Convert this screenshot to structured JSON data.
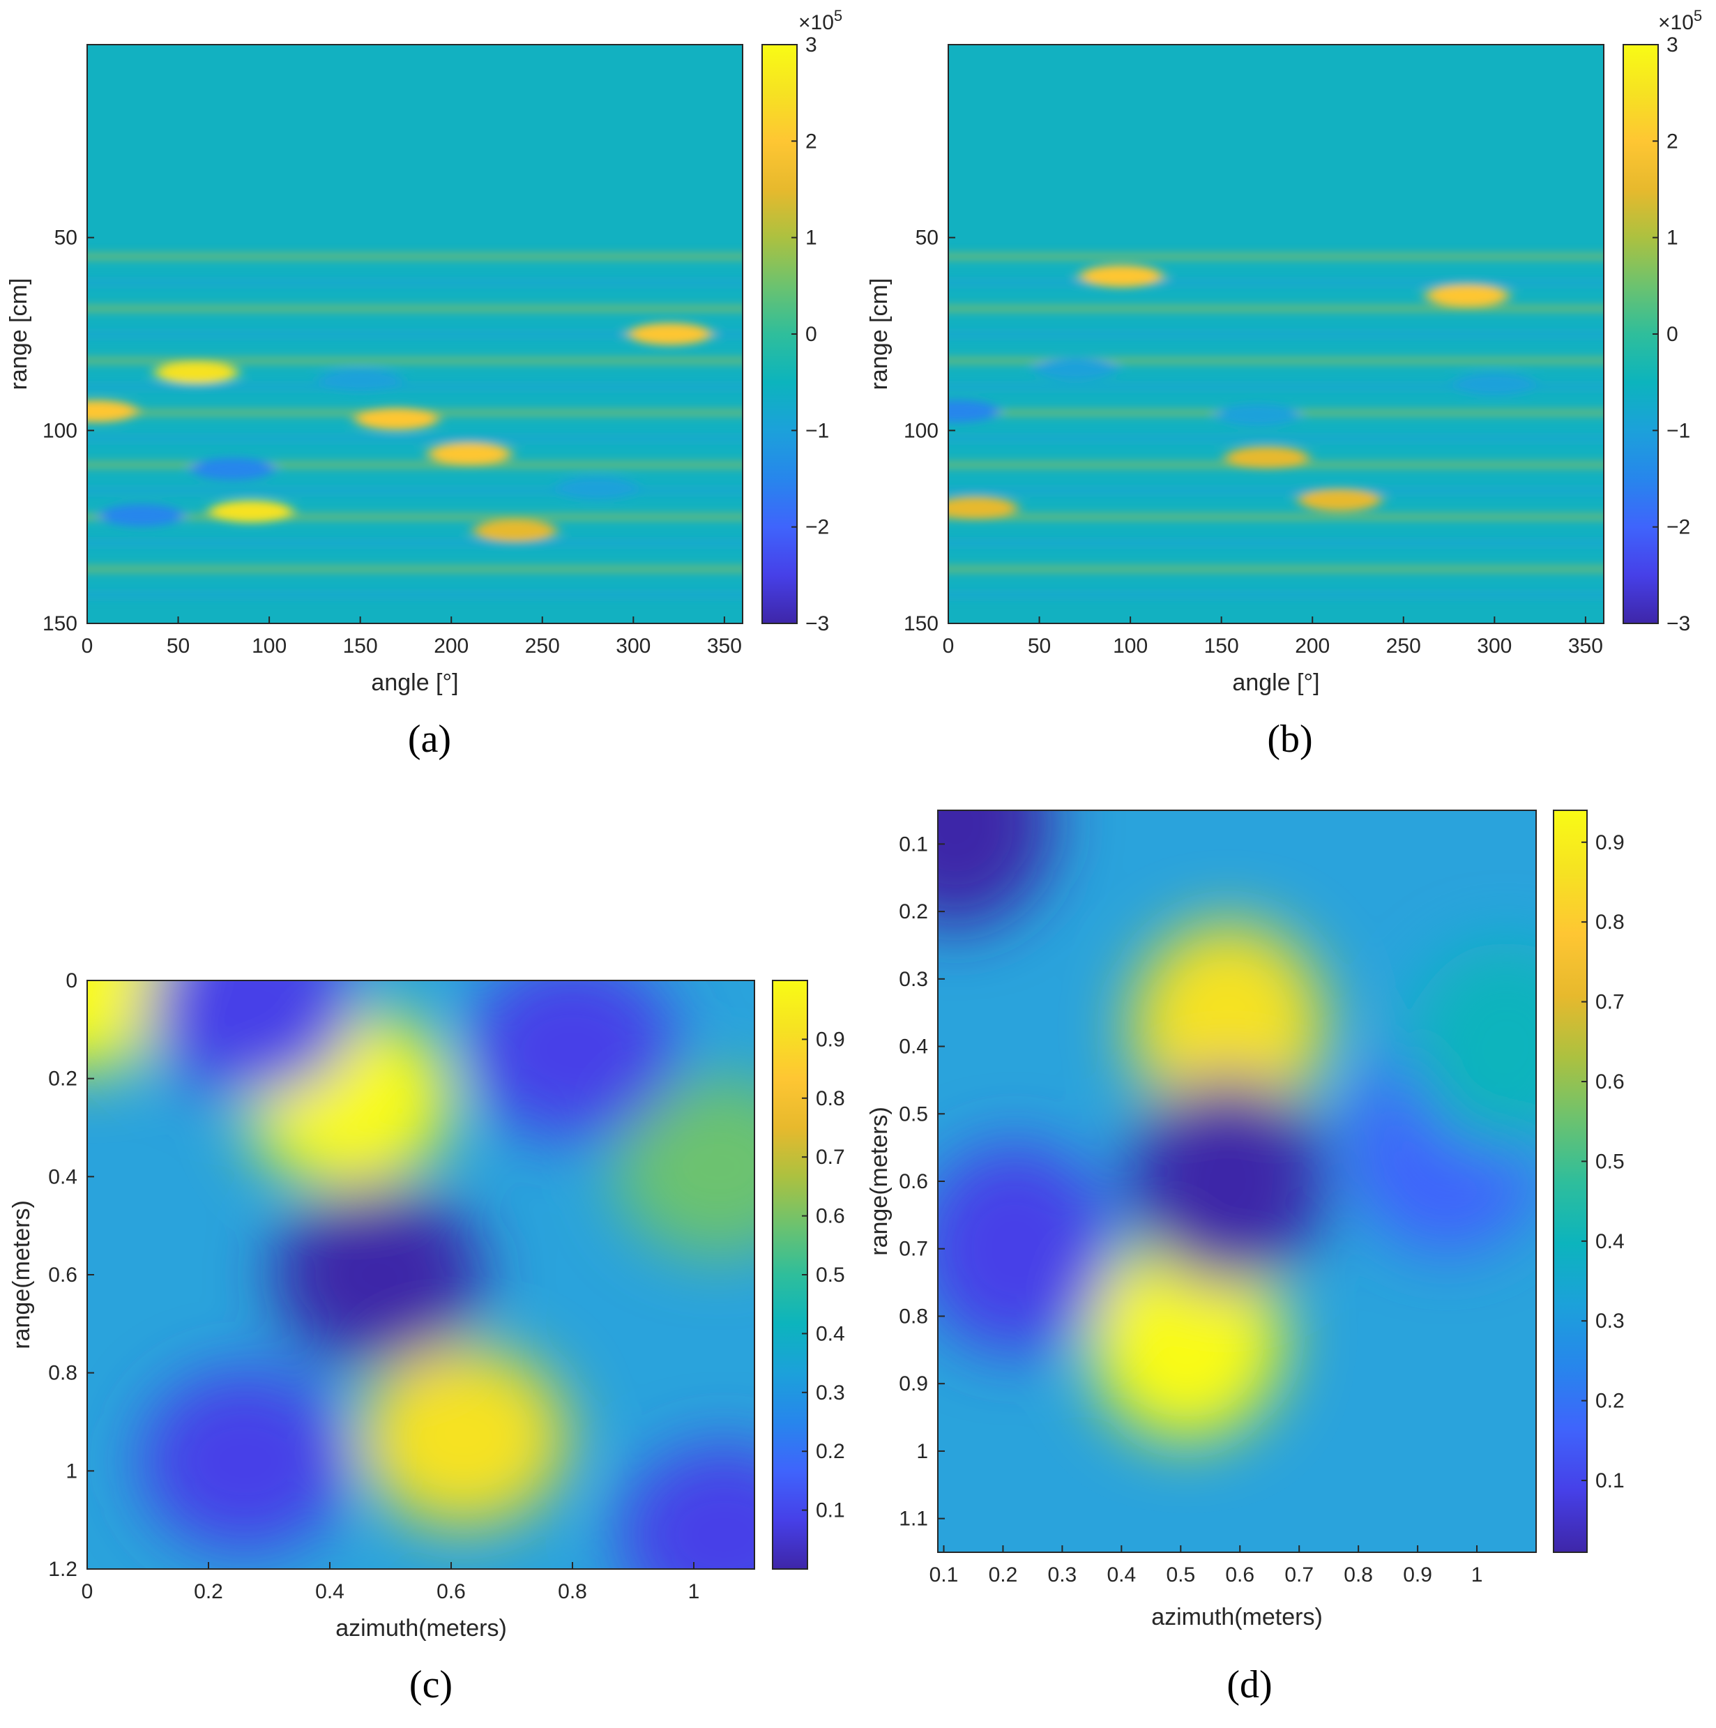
{
  "colormap": [
    "#3e26a8",
    "#4640e8",
    "#3f64fc",
    "#2786ec",
    "#1ca1da",
    "#0cb4bd",
    "#2fbe9b",
    "#6cc26f",
    "#acc140",
    "#e7b92d",
    "#fec633",
    "#f6e222",
    "#f9fb15"
  ],
  "chart_data": [
    {
      "type": "heatmap",
      "panel": "(a)",
      "xlabel": "angle [°]",
      "ylabel": "range [cm]",
      "xlim": [
        0,
        360
      ],
      "ylim": [
        0,
        150
      ],
      "y_reversed": true,
      "x_ticks": [
        "0",
        "50",
        "100",
        "150",
        "200",
        "250",
        "300",
        "350"
      ],
      "y_ticks": [
        "50",
        "100",
        "150"
      ],
      "colorbar": {
        "ticks": [
          "-3",
          "-2",
          "-1",
          "0",
          "1",
          "2",
          "3"
        ],
        "range": [
          -3,
          3
        ],
        "multiplier_base": "×10",
        "multiplier_exp": "5"
      },
      "features": [
        {
          "x": 60,
          "y": 85,
          "value": 2.4
        },
        {
          "x": 5,
          "y": 95,
          "value": 2.2
        },
        {
          "x": 90,
          "y": 121,
          "value": 2.3
        },
        {
          "x": 170,
          "y": 97,
          "value": 2.2
        },
        {
          "x": 320,
          "y": 75,
          "value": 2.0
        },
        {
          "x": 210,
          "y": 106,
          "value": 1.8
        },
        {
          "x": 235,
          "y": 126,
          "value": 1.5
        },
        {
          "x": 80,
          "y": 110,
          "value": -1.3
        },
        {
          "x": 280,
          "y": 115,
          "value": -1.2
        },
        {
          "x": 30,
          "y": 122,
          "value": -1.3
        },
        {
          "x": 150,
          "y": 87,
          "value": -1.2
        }
      ]
    },
    {
      "type": "heatmap",
      "panel": "(b)",
      "xlabel": "angle [°]",
      "ylabel": "range [cm]",
      "xlim": [
        0,
        360
      ],
      "ylim": [
        0,
        150
      ],
      "y_reversed": true,
      "x_ticks": [
        "0",
        "50",
        "100",
        "150",
        "200",
        "250",
        "300",
        "350"
      ],
      "y_ticks": [
        "50",
        "100",
        "150"
      ],
      "colorbar": {
        "ticks": [
          "-3",
          "-2",
          "-1",
          "0",
          "1",
          "2",
          "3"
        ],
        "range": [
          -3,
          3
        ],
        "multiplier_base": "×10",
        "multiplier_exp": "5"
      },
      "features": [
        {
          "x": 95,
          "y": 60,
          "value": 2.2
        },
        {
          "x": 285,
          "y": 65,
          "value": 1.8
        },
        {
          "x": 15,
          "y": 120,
          "value": 1.7
        },
        {
          "x": 215,
          "y": 118,
          "value": 1.6
        },
        {
          "x": 175,
          "y": 107,
          "value": 1.3
        },
        {
          "x": 5,
          "y": 95,
          "value": -1.5
        },
        {
          "x": 170,
          "y": 96,
          "value": -1.2
        },
        {
          "x": 300,
          "y": 88,
          "value": -1.2
        },
        {
          "x": 70,
          "y": 84,
          "value": -1.0
        }
      ]
    },
    {
      "type": "heatmap",
      "panel": "(c)",
      "xlabel": "azimuth(meters)",
      "ylabel": "range(meters)",
      "xlim": [
        0,
        1.1
      ],
      "ylim": [
        0,
        1.2
      ],
      "y_reversed": true,
      "x_ticks": [
        "0",
        "0.2",
        "0.4",
        "0.6",
        "0.8",
        "1"
      ],
      "y_ticks": [
        "0",
        "0.2",
        "0.4",
        "0.6",
        "0.8",
        "1",
        "1.2"
      ],
      "colorbar": {
        "ticks": [
          "0.1",
          "0.2",
          "0.3",
          "0.4",
          "0.5",
          "0.6",
          "0.7",
          "0.8",
          "0.9"
        ],
        "range": [
          0,
          1
        ]
      },
      "features": [
        {
          "x": 0.43,
          "y": 0.24,
          "value": 0.98
        },
        {
          "x": 0.62,
          "y": 0.93,
          "value": 0.95
        },
        {
          "x": 0.0,
          "y": 0.0,
          "value": 1.0
        },
        {
          "x": 1.04,
          "y": 0.38,
          "value": 0.58
        },
        {
          "x": 0.8,
          "y": 0.14,
          "value": 0.05
        },
        {
          "x": 0.26,
          "y": 0.98,
          "value": 0.05
        },
        {
          "x": 0.48,
          "y": 0.6,
          "value": 0.03
        },
        {
          "x": 1.05,
          "y": 1.13,
          "value": 0.05
        },
        {
          "x": 0.27,
          "y": 0.05,
          "value": 0.1
        }
      ]
    },
    {
      "type": "heatmap",
      "panel": "(d)",
      "xlabel": "azimuth(meters)",
      "ylabel": "range(meters)",
      "xlim": [
        0.09,
        1.1
      ],
      "ylim": [
        0.05,
        1.15
      ],
      "y_reversed": true,
      "x_ticks": [
        "0.1",
        "0.2",
        "0.3",
        "0.4",
        "0.5",
        "0.6",
        "0.7",
        "0.8",
        "0.9",
        "1"
      ],
      "y_ticks": [
        "0.1",
        "0.2",
        "0.3",
        "0.4",
        "0.5",
        "0.6",
        "0.7",
        "0.8",
        "0.9",
        "1",
        "1.1"
      ],
      "colorbar": {
        "ticks": [
          "0.1",
          "0.2",
          "0.3",
          "0.4",
          "0.5",
          "0.6",
          "0.7",
          "0.8",
          "0.9"
        ],
        "range": [
          0.01,
          0.94
        ]
      },
      "features": [
        {
          "x": 0.58,
          "y": 0.37,
          "value": 0.9
        },
        {
          "x": 0.51,
          "y": 0.83,
          "value": 0.94
        },
        {
          "x": 0.58,
          "y": 0.6,
          "value": 0.02
        },
        {
          "x": 0.12,
          "y": 0.07,
          "value": 0.02
        },
        {
          "x": 0.22,
          "y": 0.7,
          "value": 0.12
        },
        {
          "x": 0.95,
          "y": 0.55,
          "value": 0.2
        },
        {
          "x": 1.05,
          "y": 0.4,
          "value": 0.4
        }
      ]
    }
  ]
}
